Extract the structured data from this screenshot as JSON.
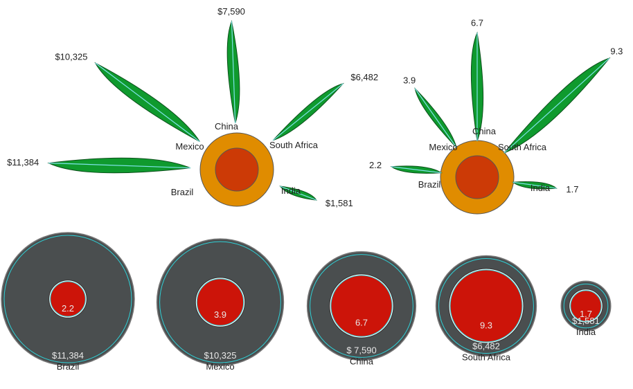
{
  "colors": {
    "leaf_fill": "#0f9a2e",
    "leaf_edge": "#0b4f1a",
    "leaf_vein": "#7fe3e9",
    "flower_outer": "#e08c00",
    "flower_inner": "#cc3a06",
    "ring_fill": "#4a4e4f",
    "ring_line": "#2fd0d6",
    "core_fill": "#cc1409",
    "text_dark": "#222222",
    "text_light": "#e8e8e8"
  },
  "chart_data": [
    {
      "type": "radial-leaf",
      "measure": "income",
      "categories": [
        "Brazil",
        "Mexico",
        "China",
        "South Africa",
        "India"
      ],
      "values": [
        11384,
        10325,
        7590,
        6482,
        1581
      ],
      "value_labels": [
        "$11,384",
        "$10,325",
        "$7,590",
        "$6,482",
        "$1,581"
      ]
    },
    {
      "type": "radial-leaf",
      "measure": "rate",
      "categories": [
        "Brazil",
        "Mexico",
        "China",
        "South Africa",
        "India"
      ],
      "values": [
        2.2,
        3.9,
        6.7,
        9.3,
        1.7
      ],
      "value_labels": [
        "2.2",
        "3.9",
        "6.7",
        "9.3",
        "1.7"
      ]
    },
    {
      "type": "nested-circles",
      "categories": [
        "Brazil",
        "Mexico",
        "China",
        "South Africa",
        "India"
      ],
      "outer_values": [
        11384,
        10325,
        7590,
        6482,
        1581
      ],
      "outer_labels": [
        "$11,384",
        "$10,325",
        "$ 7,590",
        "$6,482",
        "$1,581"
      ],
      "inner_values": [
        2.2,
        3.9,
        6.7,
        9.3,
        1.7
      ],
      "inner_labels": [
        "2.2",
        "3.9",
        "6.7",
        "9.3",
        "1.7"
      ]
    }
  ]
}
